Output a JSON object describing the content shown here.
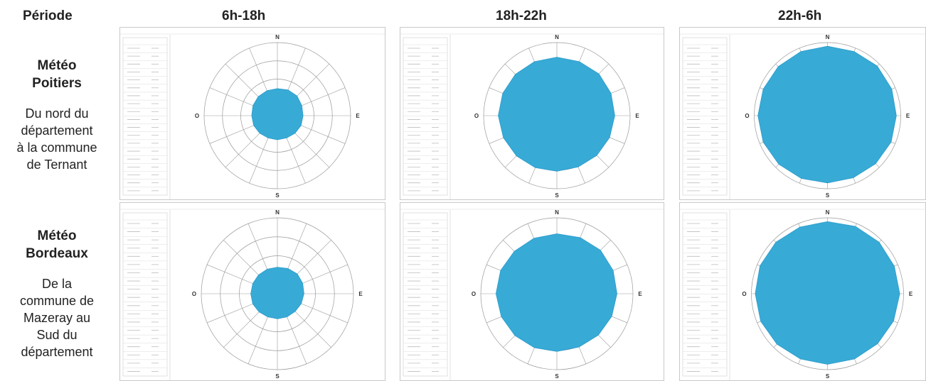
{
  "header": {
    "period_label": "Période",
    "col1": "6h-18h",
    "col2": "18h-22h",
    "col3": "22h-6h"
  },
  "rows": [
    {
      "title_line1": "Météo",
      "title_line2": "Poitiers",
      "desc": [
        "Du nord du",
        "département",
        "à la commune",
        "de Ternant"
      ]
    },
    {
      "title_line1": "Météo",
      "title_line2": "Bordeaux",
      "desc": [
        "De la",
        "commune de",
        "Mazeray au",
        "Sud du",
        "département"
      ]
    }
  ],
  "directions": {
    "n": "N",
    "e": "E",
    "s": "S",
    "w": "O"
  },
  "colors": {
    "fill": "#38aad6",
    "grid": "#9a9a9a",
    "border": "#c9c9c9"
  },
  "chart_data": [
    {
      "type": "radar",
      "row": "Météo Poitiers",
      "period": "6h-18h",
      "rmax": 1,
      "values": [
        0.37,
        0.38,
        0.38,
        0.36,
        0.35,
        0.35,
        0.34,
        0.33,
        0.33,
        0.33,
        0.34,
        0.35,
        0.35,
        0.36,
        0.37,
        0.37
      ]
    },
    {
      "type": "radar",
      "row": "Météo Poitiers",
      "period": "18h-22h",
      "rmax": 1,
      "values": [
        0.8,
        0.8,
        0.81,
        0.8,
        0.79,
        0.78,
        0.77,
        0.76,
        0.76,
        0.77,
        0.78,
        0.79,
        0.8,
        0.8,
        0.8,
        0.8
      ]
    },
    {
      "type": "radar",
      "row": "Météo Poitiers",
      "period": "22h-6h",
      "rmax": 1,
      "values": [
        0.95,
        0.95,
        0.96,
        0.95,
        0.94,
        0.94,
        0.93,
        0.92,
        0.92,
        0.93,
        0.94,
        0.95,
        0.95,
        0.95,
        0.95,
        0.95
      ]
    },
    {
      "type": "radar",
      "row": "Météo Bordeaux",
      "period": "6h-18h",
      "rmax": 1,
      "values": [
        0.35,
        0.36,
        0.37,
        0.36,
        0.35,
        0.34,
        0.33,
        0.33,
        0.33,
        0.33,
        0.34,
        0.35,
        0.35,
        0.35,
        0.35,
        0.35
      ]
    },
    {
      "type": "radar",
      "row": "Météo Bordeaux",
      "period": "18h-22h",
      "rmax": 1,
      "values": [
        0.79,
        0.8,
        0.81,
        0.8,
        0.79,
        0.78,
        0.77,
        0.76,
        0.76,
        0.77,
        0.78,
        0.79,
        0.8,
        0.8,
        0.79,
        0.79
      ]
    },
    {
      "type": "radar",
      "row": "Météo Bordeaux",
      "period": "22h-6h",
      "rmax": 1,
      "values": [
        0.95,
        0.96,
        0.96,
        0.95,
        0.95,
        0.94,
        0.93,
        0.93,
        0.93,
        0.93,
        0.94,
        0.95,
        0.95,
        0.96,
        0.96,
        0.95
      ]
    }
  ]
}
